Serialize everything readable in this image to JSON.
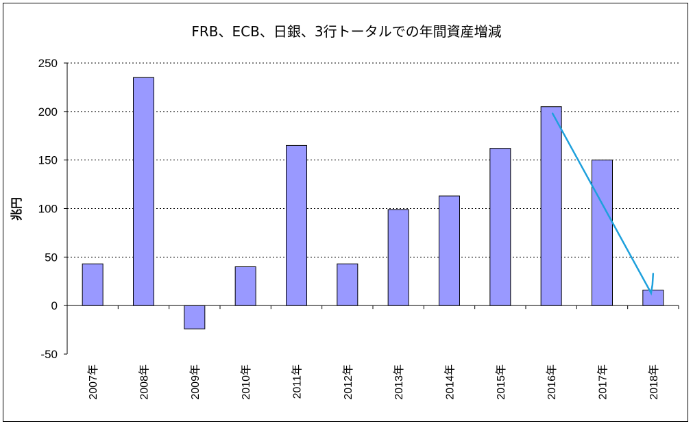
{
  "chart_data": {
    "type": "bar",
    "title": "FRB、ECB、日銀、3行トータルでの年間資産増減",
    "xlabel": "",
    "ylabel": "兆円",
    "ylim": [
      -50,
      250
    ],
    "yticks": [
      250,
      200,
      150,
      100,
      50,
      0,
      -50
    ],
    "grid": true,
    "legend": "none",
    "categories": [
      "2007年",
      "2008年",
      "2009年",
      "2010年",
      "2011年",
      "2012年",
      "2013年",
      "2014年",
      "2015年",
      "2016年",
      "2017年",
      "2018年"
    ],
    "values": [
      43,
      235,
      -24,
      40,
      165,
      43,
      99,
      113,
      162,
      205,
      150,
      16
    ],
    "annotation": {
      "type": "arrow",
      "from": {
        "category": "2016年",
        "y": 198
      },
      "to": {
        "category": "2018年",
        "y": 13
      },
      "color": "#1ea0dc"
    },
    "colors": {
      "bar_fill": "#9999ff",
      "bar_stroke": "#000000",
      "gridline": "#000000"
    }
  }
}
